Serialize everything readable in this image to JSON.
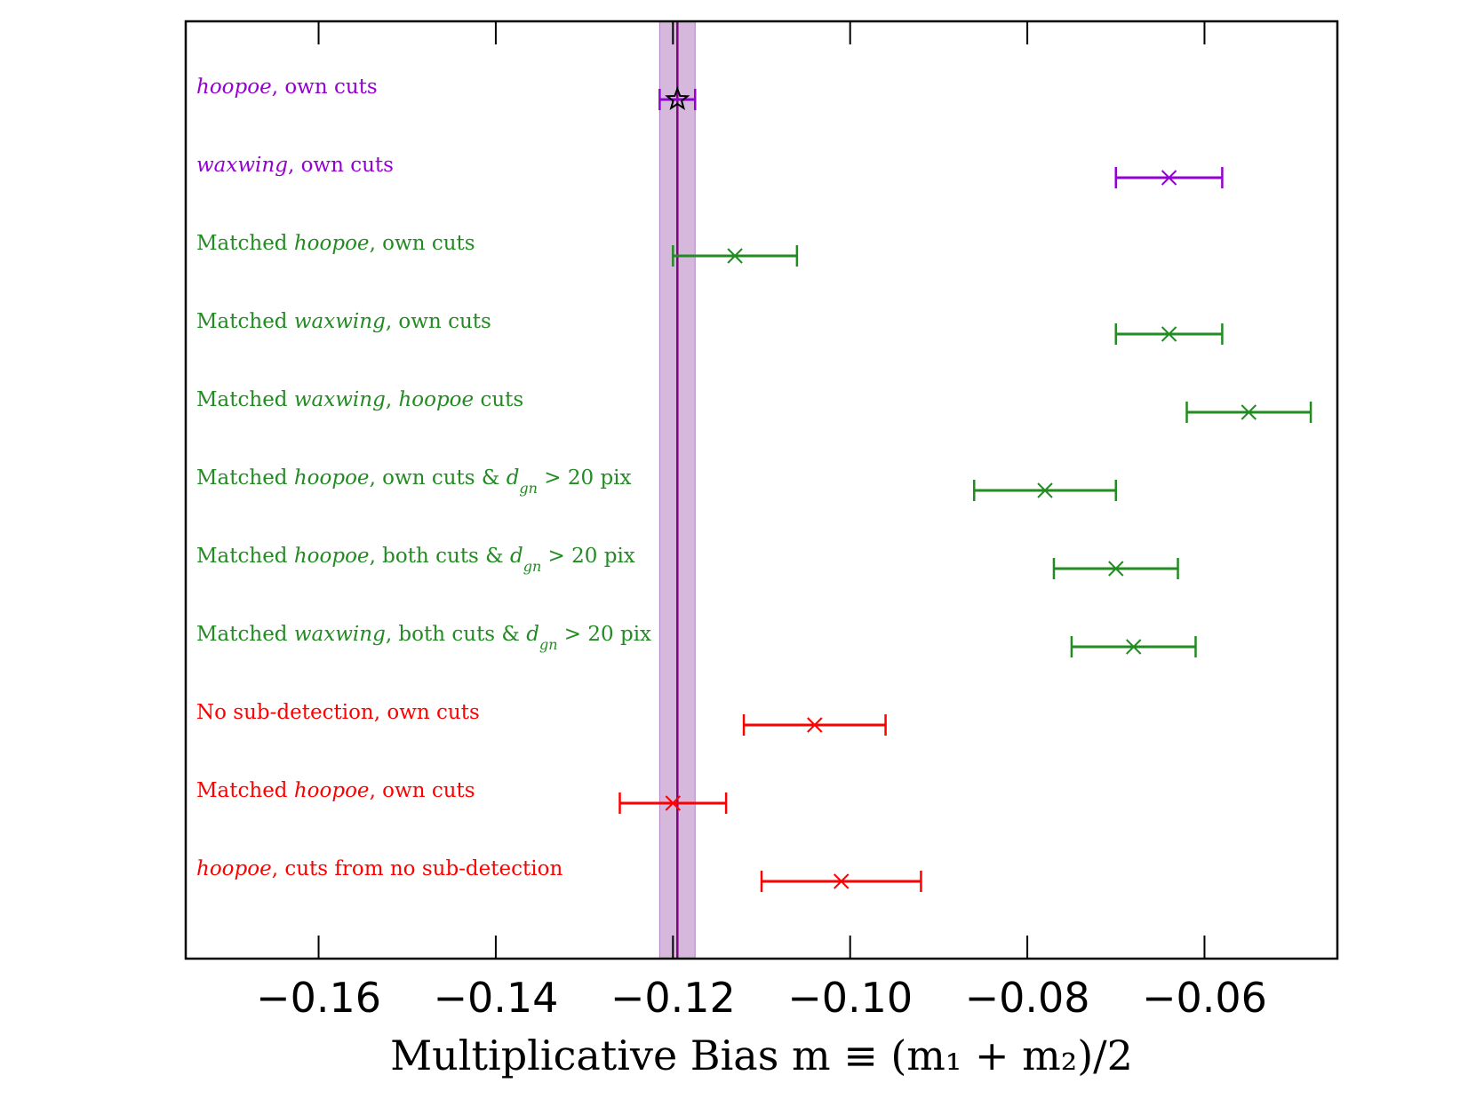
{
  "chart_data": {
    "type": "scatter",
    "subtype": "horizontal error-bar comparison",
    "title": "",
    "xlabel": "Multiplicative Bias m ≡ (m₁ + m₂)/2",
    "ylabel": "",
    "xlim": [
      -0.175,
      -0.045
    ],
    "x_ticks": [
      -0.16,
      -0.14,
      -0.12,
      -0.1,
      -0.08,
      -0.06
    ],
    "x_tick_labels": [
      "−0.16",
      "−0.14",
      "−0.12",
      "−0.10",
      "−0.08",
      "−0.06"
    ],
    "reference": {
      "value": -0.1195,
      "band": [
        -0.1215,
        -0.1175
      ],
      "line_color": "#800080",
      "band_color": "#c8a0d2"
    },
    "colors": {
      "purple": "#9400d3",
      "green": "#228b22",
      "red": "#ff0000"
    },
    "rows": [
      {
        "label_parts": [
          {
            "t": "hoopoe",
            "i": true
          },
          {
            "t": ", own cuts",
            "i": false
          }
        ],
        "color": "purple",
        "value": -0.1195,
        "err_low": -0.1215,
        "err_high": -0.1175,
        "marker": "star"
      },
      {
        "label_parts": [
          {
            "t": "waxwing",
            "i": true
          },
          {
            "t": ", own cuts",
            "i": false
          }
        ],
        "color": "purple",
        "value": -0.064,
        "err_low": -0.07,
        "err_high": -0.058,
        "marker": "x"
      },
      {
        "label_parts": [
          {
            "t": "Matched ",
            "i": false
          },
          {
            "t": "hoopoe",
            "i": true
          },
          {
            "t": ", own cuts",
            "i": false
          }
        ],
        "color": "green",
        "value": -0.113,
        "err_low": -0.12,
        "err_high": -0.106,
        "marker": "x"
      },
      {
        "label_parts": [
          {
            "t": "Matched ",
            "i": false
          },
          {
            "t": "waxwing",
            "i": true
          },
          {
            "t": ", own cuts",
            "i": false
          }
        ],
        "color": "green",
        "value": -0.064,
        "err_low": -0.07,
        "err_high": -0.058,
        "marker": "x"
      },
      {
        "label_parts": [
          {
            "t": "Matched ",
            "i": false
          },
          {
            "t": "waxwing",
            "i": true
          },
          {
            "t": ", ",
            "i": false
          },
          {
            "t": "hoopoe",
            "i": true
          },
          {
            "t": " cuts",
            "i": false
          }
        ],
        "color": "green",
        "value": -0.055,
        "err_low": -0.062,
        "err_high": -0.048,
        "marker": "x"
      },
      {
        "label_parts": [
          {
            "t": "Matched ",
            "i": false
          },
          {
            "t": "hoopoe",
            "i": true
          },
          {
            "t": ", own cuts & ",
            "i": false
          },
          {
            "t": "d",
            "i": true
          },
          {
            "t": "gn",
            "i": true,
            "sub": true
          },
          {
            "t": " > 20 pix",
            "i": false
          }
        ],
        "color": "green",
        "value": -0.078,
        "err_low": -0.086,
        "err_high": -0.07,
        "marker": "x"
      },
      {
        "label_parts": [
          {
            "t": "Matched ",
            "i": false
          },
          {
            "t": "hoopoe",
            "i": true
          },
          {
            "t": ", both cuts & ",
            "i": false
          },
          {
            "t": "d",
            "i": true
          },
          {
            "t": "gn",
            "i": true,
            "sub": true
          },
          {
            "t": " > 20 pix",
            "i": false
          }
        ],
        "color": "green",
        "value": -0.07,
        "err_low": -0.077,
        "err_high": -0.063,
        "marker": "x"
      },
      {
        "label_parts": [
          {
            "t": "Matched ",
            "i": false
          },
          {
            "t": "waxwing",
            "i": true
          },
          {
            "t": ", both cuts & ",
            "i": false
          },
          {
            "t": "d",
            "i": true
          },
          {
            "t": "gn",
            "i": true,
            "sub": true
          },
          {
            "t": " > 20 pix",
            "i": false
          }
        ],
        "color": "green",
        "value": -0.068,
        "err_low": -0.075,
        "err_high": -0.061,
        "marker": "x"
      },
      {
        "label_parts": [
          {
            "t": "No sub-detection, own cuts",
            "i": false
          }
        ],
        "color": "red",
        "value": -0.104,
        "err_low": -0.112,
        "err_high": -0.096,
        "marker": "x"
      },
      {
        "label_parts": [
          {
            "t": "Matched ",
            "i": false
          },
          {
            "t": "hoopoe",
            "i": true
          },
          {
            "t": ", own cuts",
            "i": false
          }
        ],
        "color": "red",
        "value": -0.12,
        "err_low": -0.126,
        "err_high": -0.114,
        "marker": "x"
      },
      {
        "label_parts": [
          {
            "t": "hoopoe",
            "i": true
          },
          {
            "t": ", cuts from no sub-detection",
            "i": false
          }
        ],
        "color": "red",
        "value": -0.101,
        "err_low": -0.11,
        "err_high": -0.092,
        "marker": "x"
      }
    ]
  }
}
